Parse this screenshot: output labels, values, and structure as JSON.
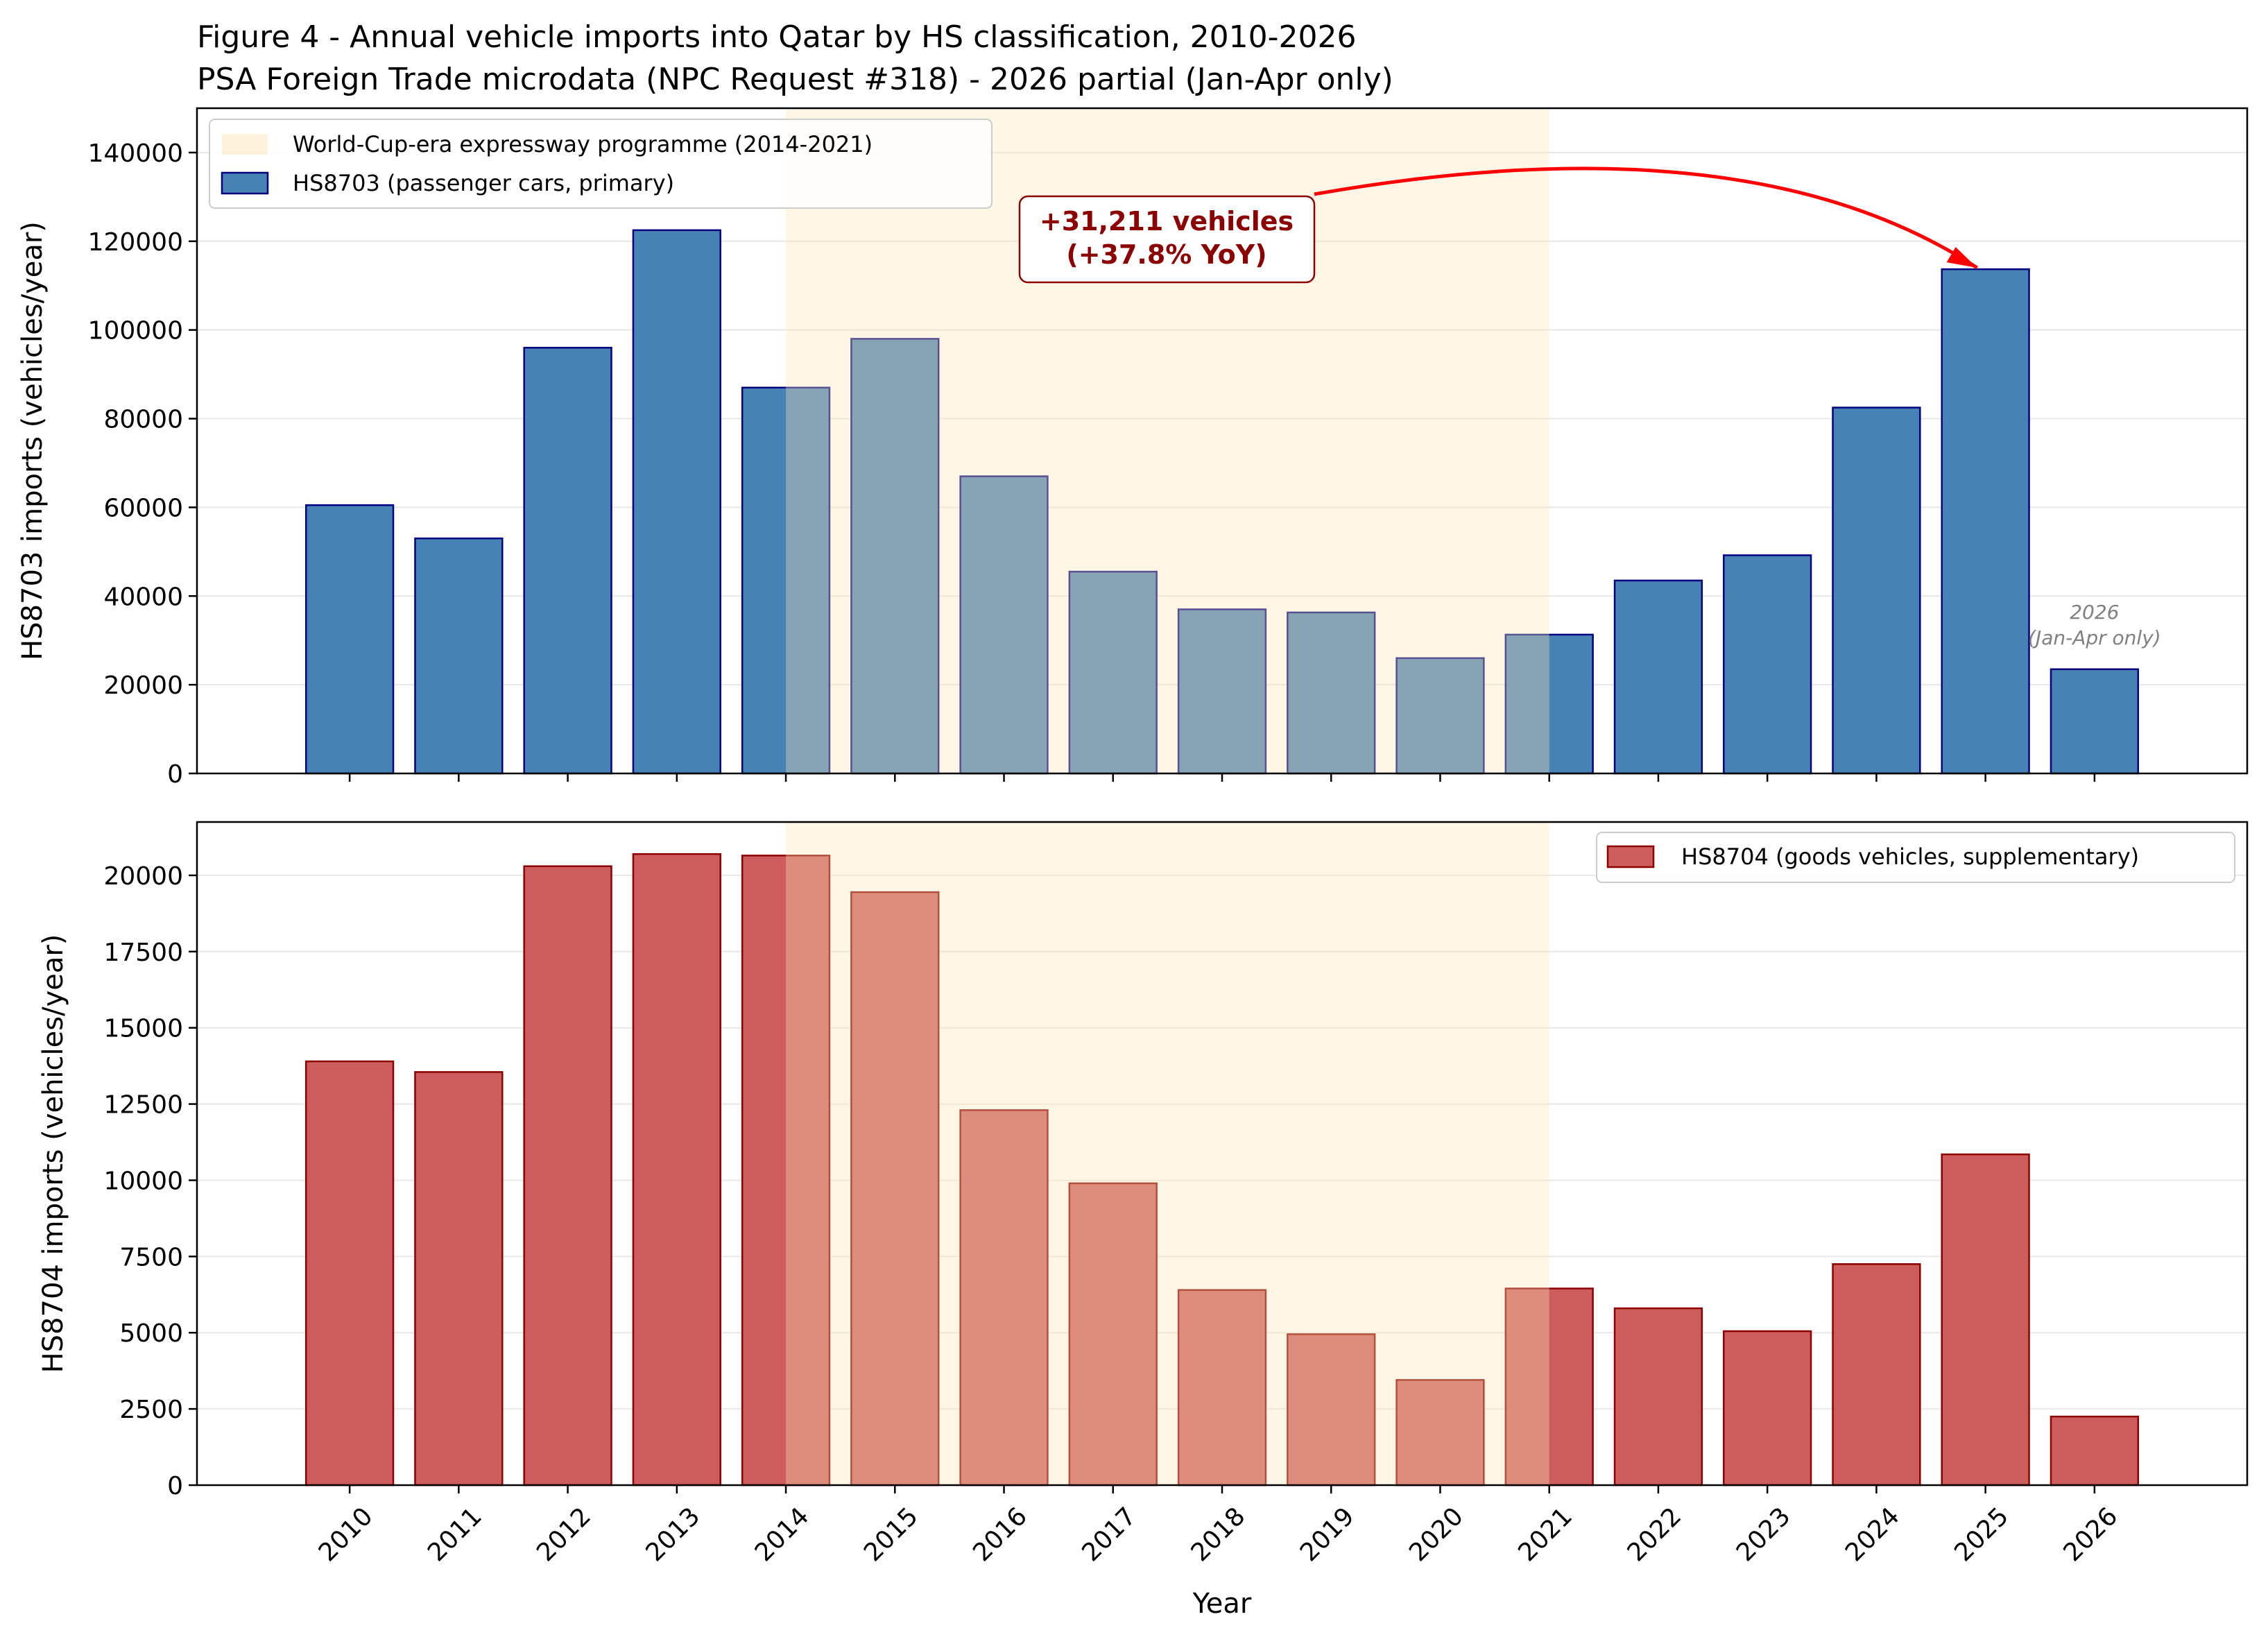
{
  "title_line1": "Figure 4 - Annual vehicle imports into Qatar by HS classification, 2010-2026",
  "title_line2": "PSA Foreign Trade microdata (NPC Request #318) - 2026 partial (Jan-Apr only)",
  "chart_data": [
    {
      "type": "bar",
      "panel": "top",
      "categories": [
        "2010",
        "2011",
        "2012",
        "2013",
        "2014",
        "2015",
        "2016",
        "2017",
        "2018",
        "2019",
        "2020",
        "2021",
        "2022",
        "2023",
        "2024",
        "2025",
        "2026"
      ],
      "series": [
        {
          "name": "HS8703 (passenger cars, primary)",
          "values": [
            60500,
            53000,
            96000,
            122500,
            87000,
            98000,
            67000,
            45500,
            37000,
            36300,
            26000,
            31300,
            43500,
            49200,
            82500,
            113700,
            23500
          ],
          "color": "#4682b4",
          "edge_color": "#000080"
        }
      ],
      "ylabel": "HS8703 imports (vehicles/year)",
      "ylim": [
        0,
        150000
      ],
      "yticks": [
        0,
        20000,
        40000,
        60000,
        80000,
        100000,
        120000,
        140000
      ],
      "grid": "y",
      "legend_position": "top-left",
      "shaded_region": {
        "label": "World-Cup-era expressway programme (2014-2021)",
        "from": "2014",
        "to": "2021",
        "color": "#fff5e1"
      },
      "annotation": {
        "line1": "+31,211 vehicles",
        "line2": "(+37.8% YoY)",
        "target": "2025",
        "arrow_color": "#ff0000"
      },
      "note": {
        "line1": "2026",
        "line2": "(Jan-Apr only)"
      }
    },
    {
      "type": "bar",
      "panel": "bottom",
      "categories": [
        "2010",
        "2011",
        "2012",
        "2013",
        "2014",
        "2015",
        "2016",
        "2017",
        "2018",
        "2019",
        "2020",
        "2021",
        "2022",
        "2023",
        "2024",
        "2025",
        "2026"
      ],
      "series": [
        {
          "name": "HS8704 (goods vehicles, supplementary)",
          "values": [
            13900,
            13550,
            20300,
            20700,
            20650,
            19450,
            12300,
            9900,
            6400,
            4950,
            3450,
            6450,
            5800,
            5050,
            7250,
            10850,
            2250
          ],
          "color": "#cd5c5c",
          "edge_color": "#8b0000"
        }
      ],
      "ylabel": "HS8704 imports (vehicles/year)",
      "xlabel": "Year",
      "ylim": [
        0,
        21750
      ],
      "yticks": [
        0,
        2500,
        5000,
        7500,
        10000,
        12500,
        15000,
        17500,
        20000
      ],
      "grid": "y",
      "legend_position": "top-right",
      "shaded_region": {
        "from": "2014",
        "to": "2021",
        "color": "#fff5e1"
      }
    }
  ]
}
